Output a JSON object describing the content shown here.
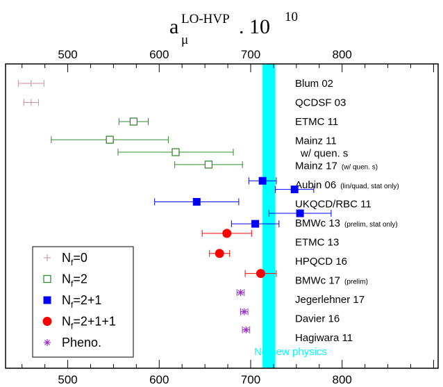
{
  "chart_data": {
    "type": "scatter",
    "title": {
      "symbol": "a",
      "sub": "μ",
      "sup": "LO-HVP",
      "factor": ". 10",
      "factor_exp": "10"
    },
    "xlim": [
      432,
      905
    ],
    "x_ticks": [
      "500",
      "600",
      "700",
      "800"
    ],
    "grid": false,
    "band": {
      "center": 720,
      "halfwidth": 7,
      "color": "#00ffff",
      "label": "No new physics"
    },
    "legend": {
      "position": "bottom-left",
      "items": [
        {
          "series": "nf0",
          "main": "N",
          "sub": "f",
          "rest": "=0"
        },
        {
          "series": "nf2",
          "main": "N",
          "sub": "f",
          "rest": "=2"
        },
        {
          "series": "nf21",
          "main": "N",
          "sub": "f",
          "rest": "=2+1"
        },
        {
          "series": "nf211",
          "main": "N",
          "sub": "f",
          "rest": "=2+1+1"
        },
        {
          "series": "pheno",
          "main": "Pheno.",
          "sub": "",
          "rest": ""
        }
      ]
    },
    "series_styles": {
      "nf0": {
        "color": "#c98c9a",
        "marker": "plus"
      },
      "nf2": {
        "color": "#2e8b2e",
        "marker": "open-square"
      },
      "nf21": {
        "color": "#0000ff",
        "marker": "filled-square"
      },
      "nf211": {
        "color": "#ff0000",
        "marker": "filled-circle"
      },
      "pheno": {
        "color": "#9932cc",
        "marker": "asterisk"
      }
    },
    "entries": [
      {
        "label": "Blum 02",
        "note": "",
        "label_color": "#000000",
        "row": 0
      },
      {
        "label": "QCDSF 03",
        "note": "",
        "label_color": "#000000",
        "row": 1
      },
      {
        "label": "ETMC 11",
        "note": "",
        "label_color": "#000000",
        "row": 2
      },
      {
        "label": "Mainz 11",
        "note": "",
        "label_color": "#000000",
        "row": 3
      },
      {
        "label": "w/ quen. s",
        "note": "",
        "label_color": "#000000",
        "row": 3.65,
        "indent": true
      },
      {
        "label": "Mainz 17",
        "note": "(w/ quen. s)",
        "label_color": "#000000",
        "row": 4.3
      },
      {
        "label": "Aubin 06",
        "note": "(lin/quad, stat only)",
        "label_color": "#000000",
        "row": 5.3
      },
      {
        "label": "UKQCD/RBC 11",
        "note": "",
        "label_color": "#000000",
        "row": 6.3
      },
      {
        "label": "BMWc 13",
        "note": "(prelim, stat only)",
        "label_color": "#000000",
        "row": 7.3
      },
      {
        "label": "ETMC 13",
        "note": "",
        "label_color": "#000000",
        "row": 8.3
      },
      {
        "label": "HPQCD 16",
        "note": "",
        "label_color": "#000000",
        "row": 9.3
      },
      {
        "label": "BMWc 17",
        "note": "(prelim)",
        "label_color": "#ff0000",
        "row": 10.3
      },
      {
        "label": "Jegerlehner 17",
        "note": "",
        "label_color": "#000000",
        "row": 11.3
      },
      {
        "label": "Davier 16",
        "note": "",
        "label_color": "#000000",
        "row": 12.3
      },
      {
        "label": "Hagiwara 11",
        "note": "",
        "label_color": "#000000",
        "row": 13.3
      }
    ],
    "points": [
      {
        "series": "nf0",
        "row": 0,
        "x": 460,
        "xerr": 14
      },
      {
        "series": "nf0",
        "row": 1,
        "x": 460,
        "xerr": 8
      },
      {
        "series": "nf2",
        "row": 2,
        "x": 572,
        "xerr": 16
      },
      {
        "series": "nf2",
        "row": 2.95,
        "x": 546,
        "xerr": 64
      },
      {
        "series": "nf2",
        "row": 3.6,
        "x": 618,
        "xerr": 63
      },
      {
        "series": "nf2",
        "row": 4.25,
        "x": 654,
        "xerr": 37
      },
      {
        "series": "nf21",
        "row": 5.1,
        "x": 713,
        "xerr": 15
      },
      {
        "series": "nf21",
        "row": 5.55,
        "x": 748,
        "xerr": 21
      },
      {
        "series": "nf21",
        "row": 6.2,
        "x": 641,
        "xerr": 46
      },
      {
        "series": "nf21",
        "row": 6.8,
        "x": 754,
        "xerr": 34
      },
      {
        "series": "nf21",
        "row": 7.35,
        "x": 705,
        "xerr": 26
      },
      {
        "series": "nf211",
        "row": 7.85,
        "x": 674,
        "xerr": 27
      },
      {
        "series": "nf211",
        "row": 8.9,
        "x": 666,
        "xerr": 11
      },
      {
        "series": "nf211",
        "row": 9.95,
        "x": 711,
        "xerr": 17
      },
      {
        "series": "pheno",
        "row": 10.95,
        "x": 689,
        "xerr": 4
      },
      {
        "series": "pheno",
        "row": 11.95,
        "x": 693,
        "xerr": 4
      },
      {
        "series": "pheno",
        "row": 12.9,
        "x": 695,
        "xerr": 4
      }
    ]
  }
}
